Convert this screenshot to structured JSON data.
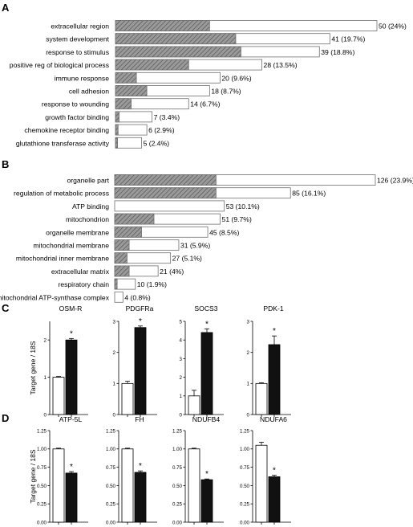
{
  "colors": {
    "hatch": "#8a8a8a",
    "hatch_line": "#5a5a5a",
    "bar_outline": "#6f6f6f",
    "filled": "#111111",
    "open": "#ffffff"
  },
  "chart_data": [
    {
      "panel": "A",
      "type": "bar",
      "orientation": "horizontal",
      "note": "stacked: hatched portion + open remainder; value label printed at bar end",
      "categories": [
        "extracellular region",
        "system development",
        "response to stimulus",
        "positive reg of biological process",
        "immune response",
        "cell adhesion",
        "response to wounding",
        "growth factor binding",
        "chemokine receptor binding",
        "glutathione transferase activity"
      ],
      "hatched": [
        18,
        23,
        24,
        14,
        4,
        6,
        3,
        0.7,
        0.5,
        0.4
      ],
      "totals": [
        50,
        41,
        39,
        28,
        20,
        18,
        14,
        7,
        6,
        5
      ],
      "labels": [
        "50 (24%)",
        "41 (19.7%)",
        "39 (18.8%)",
        "28 (13.5%)",
        "20 (9.6%)",
        "18 (8.7%)",
        "14 (6.7%)",
        "7 (3.4%)",
        "6 (2.9%)",
        "5 (2.4%)"
      ],
      "xlim": [
        0,
        50
      ]
    },
    {
      "panel": "B",
      "type": "bar",
      "orientation": "horizontal",
      "categories": [
        "organelle part",
        "regulation of metabolic process",
        "ATP binding",
        "mitochondrion",
        "organelle membrane",
        "mitochondrial membrane",
        "mitochondrial inner membrane",
        "extracellular matrix",
        "respiratory chain",
        "mitochondrial ATP-synthase complex"
      ],
      "hatched": [
        49,
        49,
        0,
        19,
        13,
        7,
        6,
        7,
        1.2,
        0
      ],
      "totals": [
        126,
        85,
        53,
        51,
        45,
        31,
        27,
        21,
        10,
        4
      ],
      "labels": [
        "126 (23.9%)",
        "85 (16.1%)",
        "53 (10.1%)",
        "51 (9.7%)",
        "45 (8.5%)",
        "31 (5.9%)",
        "27 (5.1%)",
        "21 (4%)",
        "10 (1.9%)",
        "4 (0.8%)"
      ],
      "xlim": [
        0,
        126
      ]
    },
    {
      "panel": "C",
      "type": "bar",
      "ylabel": "Target gene / 18S",
      "subplots": [
        {
          "title": "OSM-R",
          "values": [
            1.0,
            2.0
          ],
          "errors": [
            0.02,
            0.04
          ],
          "ylim": [
            0,
            2.5
          ],
          "ticks": [
            "0",
            "1",
            "2"
          ],
          "tick_values": [
            0,
            1,
            2
          ],
          "significant": [
            false,
            true
          ]
        },
        {
          "title": "PDGFRa",
          "values": [
            1.0,
            2.8
          ],
          "errors": [
            0.07,
            0.05
          ],
          "ylim": [
            0,
            3
          ],
          "ticks": [
            "0",
            "1",
            "2",
            "3"
          ],
          "tick_values": [
            0,
            1,
            2,
            3
          ],
          "significant": [
            false,
            true
          ]
        },
        {
          "title": "SOCS3",
          "values": [
            1.0,
            4.4
          ],
          "errors": [
            0.3,
            0.2
          ],
          "ylim": [
            0,
            5
          ],
          "ticks": [
            "0",
            "1",
            "2",
            "3",
            "4",
            "5"
          ],
          "tick_values": [
            0,
            1,
            2,
            3,
            4,
            5
          ],
          "significant": [
            false,
            true
          ]
        },
        {
          "title": "PDK-1",
          "values": [
            1.0,
            2.25
          ],
          "errors": [
            0.02,
            0.28
          ],
          "ylim": [
            0,
            3
          ],
          "ticks": [
            "0",
            "1",
            "2",
            "3"
          ],
          "tick_values": [
            0,
            1,
            2,
            3
          ],
          "significant": [
            false,
            true
          ]
        }
      ]
    },
    {
      "panel": "D",
      "type": "bar",
      "ylabel": "Target gene / 18S",
      "subplots": [
        {
          "title": "ATP-5L",
          "values": [
            1.0,
            0.67
          ],
          "errors": [
            0.01,
            0.02
          ],
          "ylim": [
            0,
            1.25
          ],
          "ticks": [
            "0.00",
            "0.25",
            "0.50",
            "0.75",
            "1.00",
            "1.25"
          ],
          "tick_values": [
            0,
            0.25,
            0.5,
            0.75,
            1.0,
            1.25
          ],
          "significant": [
            false,
            true
          ]
        },
        {
          "title": "FH",
          "values": [
            1.0,
            0.68
          ],
          "errors": [
            0.01,
            0.02
          ],
          "ylim": [
            0,
            1.25
          ],
          "ticks": [
            "0.00",
            "0.25",
            "0.50",
            "0.75",
            "1.00",
            "1.25"
          ],
          "tick_values": [
            0,
            0.25,
            0.5,
            0.75,
            1.0,
            1.25
          ],
          "significant": [
            false,
            true
          ]
        },
        {
          "title": "NDUFB4",
          "values": [
            1.0,
            0.58
          ],
          "errors": [
            0.01,
            0.01
          ],
          "ylim": [
            0,
            1.25
          ],
          "ticks": [
            "0.00",
            "0.25",
            "0.50",
            "0.75",
            "1.00",
            "1.25"
          ],
          "tick_values": [
            0,
            0.25,
            0.5,
            0.75,
            1.0,
            1.25
          ],
          "significant": [
            false,
            true
          ]
        },
        {
          "title": "NDUFA6",
          "values": [
            1.05,
            0.62
          ],
          "errors": [
            0.04,
            0.02
          ],
          "ylim": [
            0,
            1.25
          ],
          "ticks": [
            "0.00",
            "0.25",
            "0.50",
            "0.75",
            "1.00",
            "1.25"
          ],
          "tick_values": [
            0,
            0.25,
            0.5,
            0.75,
            1.0,
            1.25
          ],
          "significant": [
            false,
            true
          ]
        }
      ]
    }
  ],
  "panel_letters": [
    "A",
    "B",
    "C",
    "D"
  ],
  "significance_marker": "*"
}
